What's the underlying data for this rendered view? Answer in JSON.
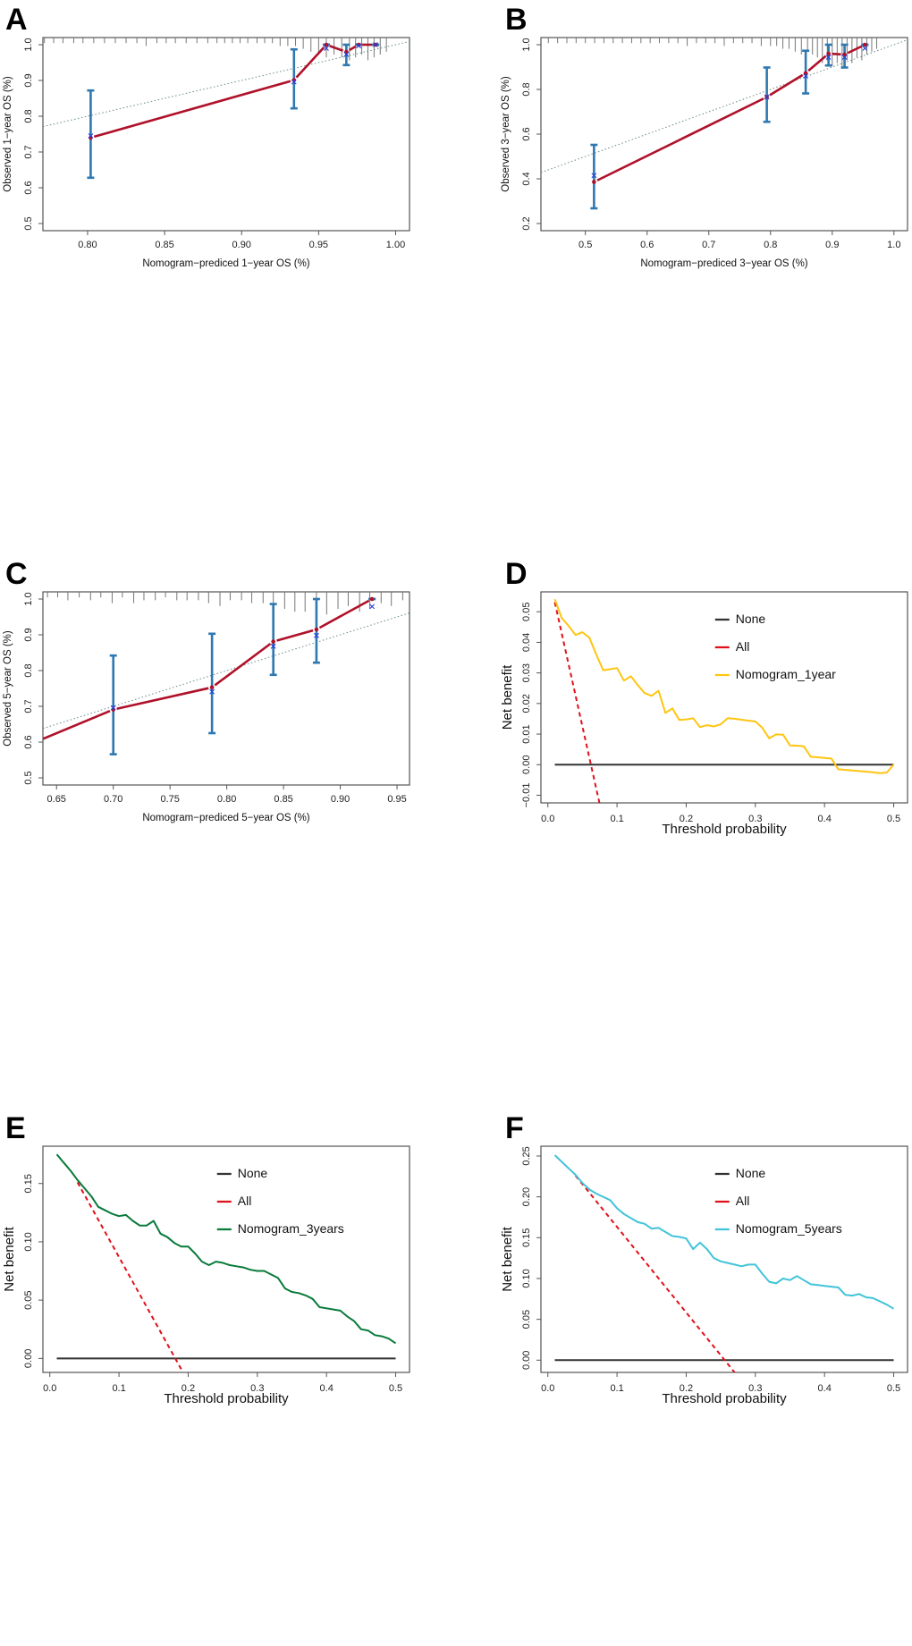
{
  "panels": [
    {
      "letter": "A"
    },
    {
      "letter": "B"
    },
    {
      "letter": "C"
    },
    {
      "letter": "D"
    },
    {
      "letter": "E"
    },
    {
      "letter": "F"
    }
  ],
  "colors": {
    "calibration_line": "#b0112a",
    "error_bar": "#2f78b0",
    "observed_marker": "#1f3fe0",
    "ideal_line": "#6a8a8a",
    "rug": "#777777",
    "none_line": "#333333",
    "all_line": "#e0101a",
    "nomogram_1year": "#ffc510",
    "nomogram_3years": "#087a3a",
    "nomogram_5years": "#40c4d8"
  },
  "chart_data": [
    {
      "id": "A",
      "type": "scatter",
      "title": "",
      "xlabel": "Nomogram−prediced 1−year OS (%)",
      "ylabel": "Observed 1−year OS (%)",
      "xlim": [
        0.771,
        1.009
      ],
      "ylim": [
        0.48,
        1.02
      ],
      "xticks": [
        0.8,
        0.85,
        0.9,
        0.95,
        1.0
      ],
      "xtick_labels": [
        "0.80",
        "0.85",
        "0.90",
        "0.95",
        "1.00"
      ],
      "yticks": [
        0.5,
        0.6,
        0.7,
        0.8,
        0.9,
        1.0
      ],
      "ytick_labels": [
        "0.5",
        "0.6",
        "0.7",
        "0.8",
        "0.9",
        "1.0"
      ],
      "grid": false,
      "ideal_line": true,
      "points": [
        {
          "x": 0.802,
          "y": 0.74,
          "obs": 0.745,
          "lo": 0.628,
          "hi": 0.872
        },
        {
          "x": 0.934,
          "y": 0.901,
          "obs": 0.896,
          "lo": 0.822,
          "hi": 0.987
        },
        {
          "x": 0.955,
          "y": 1.0,
          "obs": 0.99,
          "lo": 1.0,
          "hi": 1.0
        },
        {
          "x": 0.968,
          "y": 0.98,
          "obs": 0.973,
          "lo": 0.943,
          "hi": 1.0
        },
        {
          "x": 0.976,
          "y": 1.0,
          "obs": 0.997,
          "lo": 1.0,
          "hi": 1.0
        },
        {
          "x": 0.987,
          "y": 1.0,
          "obs": 1.0,
          "lo": 1.0,
          "hi": 1.0
        }
      ],
      "rug": [
        0.772,
        0.778,
        0.784,
        0.791,
        0.797,
        0.804,
        0.811,
        0.818,
        0.825,
        0.832,
        0.838,
        0.845,
        0.851,
        0.857,
        0.864,
        0.871,
        0.878,
        0.884,
        0.889,
        0.894,
        0.899,
        0.904,
        0.91,
        0.915,
        0.92,
        0.925,
        0.93,
        0.935,
        0.94,
        0.945,
        0.95,
        0.955,
        0.96,
        0.965,
        0.97,
        0.974,
        0.978,
        0.982,
        0.986,
        0.99,
        0.994
      ],
      "rug_len": [
        1,
        1,
        1,
        1,
        1,
        1,
        1,
        1,
        1,
        1,
        2,
        1,
        1,
        1,
        1,
        1,
        1,
        1,
        1,
        1,
        1,
        1,
        1,
        1,
        1,
        2,
        2,
        2,
        3,
        4,
        5,
        6,
        5,
        6,
        7,
        6,
        5,
        7,
        6,
        5,
        4
      ]
    },
    {
      "id": "B",
      "type": "scatter",
      "title": "",
      "xlabel": "Nomogram−prediced 3−year OS (%)",
      "ylabel": "Observed 3−year OS (%)",
      "xlim": [
        0.428,
        1.022
      ],
      "ylim": [
        0.168,
        1.032
      ],
      "xticks": [
        0.5,
        0.6,
        0.7,
        0.8,
        0.9,
        1.0
      ],
      "xtick_labels": [
        "0.5",
        "0.6",
        "0.7",
        "0.8",
        "0.9",
        "1.0"
      ],
      "yticks": [
        0.2,
        0.4,
        0.6,
        0.8,
        1.0
      ],
      "ytick_labels": [
        "0.2",
        "0.4",
        "0.6",
        "0.8",
        "1.0"
      ],
      "grid": false,
      "ideal_line": true,
      "points": [
        {
          "x": 0.514,
          "y": 0.386,
          "obs": 0.415,
          "lo": 0.268,
          "hi": 0.552
        },
        {
          "x": 0.794,
          "y": 0.766,
          "obs": 0.766,
          "lo": 0.655,
          "hi": 0.898
        },
        {
          "x": 0.857,
          "y": 0.873,
          "obs": 0.86,
          "lo": 0.782,
          "hi": 0.973
        },
        {
          "x": 0.894,
          "y": 0.96,
          "obs": 0.944,
          "lo": 0.907,
          "hi": 1.0
        },
        {
          "x": 0.92,
          "y": 0.956,
          "obs": 0.944,
          "lo": 0.898,
          "hi": 1.0
        },
        {
          "x": 0.953,
          "y": 1.0,
          "obs": 0.984,
          "lo": 1.0,
          "hi": 1.0
        }
      ],
      "rug": [
        0.44,
        0.455,
        0.47,
        0.485,
        0.5,
        0.515,
        0.53,
        0.545,
        0.56,
        0.575,
        0.59,
        0.605,
        0.62,
        0.635,
        0.65,
        0.665,
        0.68,
        0.695,
        0.71,
        0.725,
        0.74,
        0.755,
        0.77,
        0.785,
        0.8,
        0.81,
        0.82,
        0.83,
        0.84,
        0.85,
        0.86,
        0.868,
        0.876,
        0.884,
        0.892,
        0.9,
        0.908,
        0.916,
        0.924,
        0.932,
        0.94,
        0.948,
        0.956,
        0.964,
        0.972
      ],
      "rug_len": [
        1,
        1,
        1,
        1,
        1,
        1,
        1,
        1,
        1,
        1,
        1,
        1,
        1,
        1,
        1,
        2,
        1,
        1,
        1,
        2,
        1,
        1,
        1,
        2,
        2,
        2,
        3,
        3,
        4,
        5,
        4,
        5,
        6,
        8,
        7,
        9,
        8,
        10,
        7,
        8,
        6,
        7,
        5,
        4,
        3
      ]
    },
    {
      "id": "C",
      "type": "scatter",
      "title": "",
      "xlabel": "Nomogram−prediced 5−year OS (%)",
      "ylabel": "Observed 5−year OS (%)",
      "xlim": [
        0.638,
        0.961
      ],
      "ylim": [
        0.48,
        1.02
      ],
      "xticks": [
        0.65,
        0.7,
        0.75,
        0.8,
        0.85,
        0.9,
        0.95
      ],
      "xtick_labels": [
        "0.65",
        "0.70",
        "0.75",
        "0.80",
        "0.85",
        "0.90",
        "0.95"
      ],
      "yticks": [
        0.5,
        0.6,
        0.7,
        0.8,
        0.9,
        1.0
      ],
      "ytick_labels": [
        "0.5",
        "0.6",
        "0.7",
        "0.8",
        "0.9",
        "1.0"
      ],
      "grid": false,
      "ideal_line": true,
      "line_extends_left_to": {
        "x": 0.638,
        "y": 0.609
      },
      "points": [
        {
          "x": 0.7,
          "y": 0.691,
          "obs": 0.696,
          "lo": 0.566,
          "hi": 0.842
        },
        {
          "x": 0.787,
          "y": 0.753,
          "obs": 0.741,
          "lo": 0.625,
          "hi": 0.903
        },
        {
          "x": 0.841,
          "y": 0.881,
          "obs": 0.868,
          "lo": 0.788,
          "hi": 0.986
        },
        {
          "x": 0.879,
          "y": 0.915,
          "obs": 0.898,
          "lo": 0.822,
          "hi": 1.0
        },
        {
          "x": 0.928,
          "y": 1.0,
          "obs": 0.979,
          "lo": 1.0,
          "hi": 1.0
        }
      ],
      "rug": [
        0.642,
        0.651,
        0.66,
        0.67,
        0.68,
        0.689,
        0.699,
        0.708,
        0.718,
        0.727,
        0.737,
        0.746,
        0.756,
        0.765,
        0.775,
        0.784,
        0.794,
        0.803,
        0.813,
        0.822,
        0.832,
        0.841,
        0.851,
        0.86,
        0.869,
        0.879,
        0.888,
        0.898,
        0.907,
        0.917,
        0.926,
        0.936,
        0.945,
        0.955
      ],
      "rug_len": [
        1,
        1,
        2,
        1,
        2,
        1,
        3,
        1,
        3,
        2,
        2,
        1,
        2,
        2,
        2,
        3,
        4,
        2,
        2,
        3,
        3,
        4,
        5,
        6,
        6,
        4,
        7,
        5,
        4,
        6,
        5,
        3,
        4,
        2
      ]
    },
    {
      "id": "D",
      "type": "line",
      "title": "",
      "xlabel": "Threshold probability",
      "ylabel": "Net benefit",
      "xlim": [
        -0.01,
        0.52
      ],
      "ylim": [
        -0.0125,
        0.0565
      ],
      "xticks": [
        0.0,
        0.1,
        0.2,
        0.3,
        0.4,
        0.5
      ],
      "xtick_labels": [
        "0.0",
        "0.1",
        "0.2",
        "0.3",
        "0.4",
        "0.5"
      ],
      "yticks": [
        -0.01,
        0.0,
        0.01,
        0.02,
        0.03,
        0.04,
        0.05
      ],
      "ytick_labels": [
        "−0.01",
        "0.00",
        "0.01",
        "0.02",
        "0.03",
        "0.04",
        "0.05"
      ],
      "grid": false,
      "legend": {
        "position": "top-right",
        "entries": [
          "None",
          "All",
          "Nomogram_1year"
        ]
      },
      "series": [
        {
          "name": "None",
          "style": "solid",
          "x": [
            0.01,
            0.5
          ],
          "y": [
            0.0,
            0.0
          ]
        },
        {
          "name": "All",
          "style": "dashed",
          "x": [
            0.01,
            0.0745
          ],
          "y": [
            0.0531,
            -0.0125
          ]
        },
        {
          "name": "Nomogram_1year",
          "style": "solid",
          "x": [
            0.01,
            0.02,
            0.03,
            0.04,
            0.05,
            0.06,
            0.07,
            0.08,
            0.09,
            0.1,
            0.11,
            0.12,
            0.13,
            0.14,
            0.15,
            0.16,
            0.17,
            0.18,
            0.19,
            0.2,
            0.21,
            0.22,
            0.23,
            0.24,
            0.25,
            0.26,
            0.27,
            0.28,
            0.29,
            0.3,
            0.31,
            0.32,
            0.33,
            0.34,
            0.35,
            0.36,
            0.37,
            0.38,
            0.39,
            0.4,
            0.41,
            0.42,
            0.43,
            0.44,
            0.45,
            0.46,
            0.47,
            0.48,
            0.49,
            0.5
          ],
          "y": [
            0.0541,
            0.048,
            0.0454,
            0.0424,
            0.0433,
            0.0415,
            0.036,
            0.0309,
            0.0312,
            0.0316,
            0.0275,
            0.0289,
            0.026,
            0.0234,
            0.0225,
            0.0242,
            0.0169,
            0.0184,
            0.0146,
            0.0148,
            0.0152,
            0.0123,
            0.0129,
            0.0125,
            0.0132,
            0.0152,
            0.015,
            0.0147,
            0.0144,
            0.0141,
            0.0121,
            0.0086,
            0.0099,
            0.0098,
            0.0063,
            0.0062,
            0.006,
            0.0026,
            0.0024,
            0.0022,
            0.002,
            -0.0015,
            -0.0017,
            -0.0019,
            -0.0021,
            -0.0023,
            -0.0025,
            -0.0028,
            -0.0026,
            0.0
          ]
        }
      ]
    },
    {
      "id": "E",
      "type": "line",
      "title": "",
      "xlabel": "Threshold probability",
      "ylabel": "Net benefit",
      "xlim": [
        -0.01,
        0.52
      ],
      "ylim": [
        -0.012,
        0.182
      ],
      "xticks": [
        0.0,
        0.1,
        0.2,
        0.3,
        0.4,
        0.5
      ],
      "xtick_labels": [
        "0.0",
        "0.1",
        "0.2",
        "0.3",
        "0.4",
        "0.5"
      ],
      "yticks": [
        0.0,
        0.05,
        0.1,
        0.15
      ],
      "ytick_labels": [
        "0.00",
        "0.05",
        "0.10",
        "0.15"
      ],
      "grid": false,
      "legend": {
        "position": "top-right",
        "entries": [
          "None",
          "All",
          "Nomogram_3years"
        ]
      },
      "series": [
        {
          "name": "None",
          "style": "solid",
          "x": [
            0.01,
            0.5
          ],
          "y": [
            0.0,
            0.0
          ]
        },
        {
          "name": "All",
          "style": "dashed",
          "x": [
            0.04,
            0.1925
          ],
          "y": [
            0.151,
            -0.012
          ]
        },
        {
          "name": "Nomogram_3years",
          "style": "solid",
          "x": [
            0.01,
            0.02,
            0.03,
            0.04,
            0.05,
            0.06,
            0.07,
            0.08,
            0.09,
            0.1,
            0.11,
            0.12,
            0.13,
            0.14,
            0.15,
            0.16,
            0.17,
            0.18,
            0.19,
            0.2,
            0.21,
            0.22,
            0.23,
            0.24,
            0.25,
            0.26,
            0.27,
            0.28,
            0.29,
            0.3,
            0.31,
            0.32,
            0.33,
            0.34,
            0.35,
            0.36,
            0.37,
            0.38,
            0.39,
            0.4,
            0.41,
            0.42,
            0.43,
            0.44,
            0.45,
            0.46,
            0.47,
            0.48,
            0.49,
            0.5
          ],
          "y": [
            0.175,
            0.168,
            0.161,
            0.153,
            0.146,
            0.139,
            0.13,
            0.127,
            0.124,
            0.122,
            0.123,
            0.118,
            0.114,
            0.114,
            0.118,
            0.107,
            0.104,
            0.099,
            0.096,
            0.096,
            0.09,
            0.083,
            0.08,
            0.083,
            0.082,
            0.08,
            0.079,
            0.078,
            0.076,
            0.075,
            0.075,
            0.072,
            0.069,
            0.06,
            0.057,
            0.056,
            0.054,
            0.051,
            0.044,
            0.043,
            0.042,
            0.041,
            0.036,
            0.032,
            0.025,
            0.024,
            0.02,
            0.019,
            0.017,
            0.013
          ]
        }
      ]
    },
    {
      "id": "F",
      "type": "line",
      "title": "",
      "xlabel": "Threshold probability",
      "ylabel": "Net benefit",
      "xlim": [
        -0.01,
        0.52
      ],
      "ylim": [
        -0.015,
        0.262
      ],
      "xticks": [
        0.0,
        0.1,
        0.2,
        0.3,
        0.4,
        0.5
      ],
      "xtick_labels": [
        "0.0",
        "0.1",
        "0.2",
        "0.3",
        "0.4",
        "0.5"
      ],
      "yticks": [
        0.0,
        0.05,
        0.1,
        0.15,
        0.2,
        0.25
      ],
      "ytick_labels": [
        "0.00",
        "0.05",
        "0.10",
        "0.15",
        "0.20",
        "0.25"
      ],
      "grid": false,
      "legend": {
        "position": "top-right",
        "entries": [
          "None",
          "All",
          "Nomogram_5years"
        ]
      },
      "series": [
        {
          "name": "None",
          "style": "solid",
          "x": [
            0.01,
            0.5
          ],
          "y": [
            0.0,
            0.0
          ]
        },
        {
          "name": "All",
          "style": "dashed",
          "x": [
            0.04,
            0.27
          ],
          "y": [
            0.226,
            -0.015
          ]
        },
        {
          "name": "Nomogram_5years",
          "style": "solid",
          "x": [
            0.01,
            0.02,
            0.03,
            0.04,
            0.05,
            0.06,
            0.07,
            0.08,
            0.09,
            0.1,
            0.11,
            0.12,
            0.13,
            0.14,
            0.15,
            0.16,
            0.17,
            0.18,
            0.19,
            0.2,
            0.21,
            0.22,
            0.23,
            0.24,
            0.25,
            0.26,
            0.27,
            0.28,
            0.29,
            0.3,
            0.31,
            0.32,
            0.33,
            0.34,
            0.35,
            0.36,
            0.37,
            0.38,
            0.39,
            0.4,
            0.41,
            0.42,
            0.43,
            0.44,
            0.45,
            0.46,
            0.47,
            0.48,
            0.49,
            0.5
          ],
          "y": [
            0.251,
            0.243,
            0.235,
            0.227,
            0.217,
            0.209,
            0.204,
            0.2,
            0.196,
            0.186,
            0.179,
            0.174,
            0.169,
            0.167,
            0.161,
            0.162,
            0.157,
            0.152,
            0.151,
            0.149,
            0.136,
            0.144,
            0.136,
            0.125,
            0.121,
            0.119,
            0.117,
            0.115,
            0.117,
            0.117,
            0.106,
            0.096,
            0.094,
            0.1,
            0.098,
            0.103,
            0.098,
            0.093,
            0.092,
            0.091,
            0.09,
            0.089,
            0.08,
            0.079,
            0.081,
            0.077,
            0.076,
            0.072,
            0.068,
            0.063
          ]
        }
      ]
    }
  ]
}
